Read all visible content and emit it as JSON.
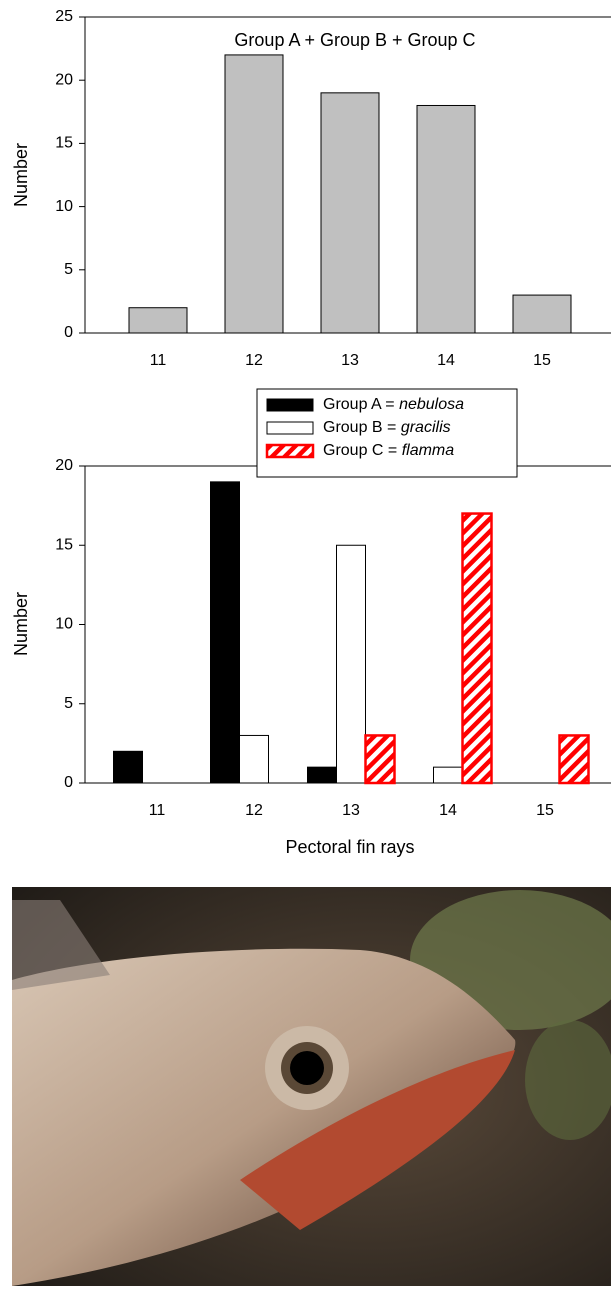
{
  "chart_data": [
    {
      "type": "bar",
      "annotation": "Group A + Group B + Group C",
      "ylabel": "Number",
      "categories": [
        "11",
        "12",
        "13",
        "14",
        "15"
      ],
      "values": [
        2,
        22,
        19,
        18,
        3
      ],
      "color": "#c0c0c0",
      "ylim": [
        0,
        25
      ],
      "yticks": [
        0,
        5,
        10,
        15,
        20,
        25
      ]
    },
    {
      "type": "grouped_bar",
      "ylabel": "Number",
      "xlabel": "Pectoral fin rays",
      "categories": [
        "11",
        "12",
        "13",
        "14",
        "15"
      ],
      "series": [
        {
          "name": "Group A = nebulosa",
          "color": "#000000",
          "values": [
            2,
            19,
            1,
            0,
            0
          ]
        },
        {
          "name": "Group B = gracilis",
          "color": "#ffffff",
          "values": [
            0,
            3,
            15,
            1,
            0
          ]
        },
        {
          "name": "Group C = flamma",
          "color": "#ff0000",
          "hatch": true,
          "values": [
            0,
            0,
            3,
            17,
            3
          ]
        }
      ],
      "ylim": [
        0,
        20
      ],
      "yticks": [
        0,
        5,
        10,
        15,
        20
      ],
      "legend": "top-right"
    }
  ]
}
